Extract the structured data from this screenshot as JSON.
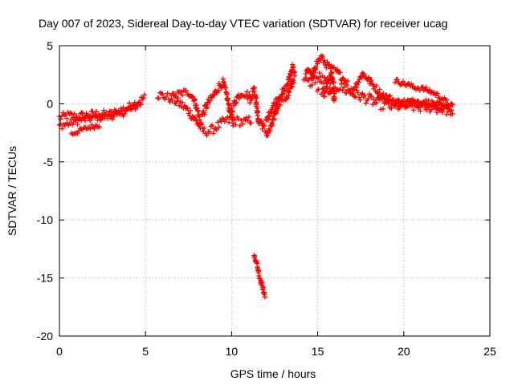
{
  "chart_data": {
    "type": "scatter",
    "title": "Day 007 of 2023, Sidereal Day-to-day VTEC variation (SDTVAR) for receiver ucag",
    "xlabel": "GPS time / hours",
    "ylabel": "SDTVAR / TECUs",
    "xlim": [
      0,
      25
    ],
    "ylim": [
      -20,
      5
    ],
    "xticks": [
      0,
      5,
      10,
      15,
      20,
      25
    ],
    "yticks": [
      -20,
      -15,
      -10,
      -5,
      0,
      5
    ],
    "grid": true,
    "marker": "+",
    "color": "#ff0000",
    "series": [
      {
        "name": "SDTVAR",
        "bands": [
          {
            "points": [
              [
                0.0,
                -1.2
              ],
              [
                0.5,
                -1.0
              ],
              [
                1.0,
                -1.1
              ],
              [
                1.5,
                -1.0
              ],
              [
                2.0,
                -0.9
              ],
              [
                2.5,
                -0.9
              ],
              [
                3.0,
                -0.9
              ],
              [
                3.5,
                -0.6
              ],
              [
                4.0,
                -0.3
              ],
              [
                4.5,
                0.1
              ],
              [
                5.0,
                0.6
              ]
            ],
            "spread": 0.35
          },
          {
            "points": [
              [
                0.0,
                -1.9
              ],
              [
                0.6,
                -1.7
              ],
              [
                1.2,
                -1.4
              ],
              [
                2.0,
                -1.2
              ],
              [
                2.8,
                -1.1
              ],
              [
                3.5,
                -0.9
              ],
              [
                4.2,
                -0.4
              ],
              [
                4.8,
                0.1
              ]
            ],
            "spread": 0.3
          },
          {
            "points": [
              [
                0.7,
                -2.6
              ],
              [
                1.2,
                -2.3
              ],
              [
                1.8,
                -2.0
              ],
              [
                2.4,
                -1.8
              ]
            ],
            "spread": 0.2
          },
          {
            "points": [
              [
                5.7,
                0.8
              ],
              [
                6.2,
                0.6
              ],
              [
                6.7,
                0.3
              ],
              [
                7.2,
                -0.2
              ],
              [
                7.6,
                -0.8
              ],
              [
                8.0,
                -1.6
              ],
              [
                8.4,
                -2.4
              ],
              [
                8.8,
                -2.3
              ],
              [
                9.2,
                -1.9
              ],
              [
                9.6,
                -1.5
              ],
              [
                10.0,
                -1.4
              ],
              [
                10.4,
                -1.5
              ],
              [
                10.8,
                -1.6
              ],
              [
                11.2,
                -1.3
              ]
            ],
            "spread": 0.4
          },
          {
            "points": [
              [
                6.5,
                0.6
              ],
              [
                7.0,
                0.9
              ],
              [
                7.5,
                1.0
              ],
              [
                7.8,
                0.5
              ],
              [
                8.0,
                -0.5
              ],
              [
                8.2,
                -1.5
              ]
            ],
            "spread": 0.3
          },
          {
            "points": [
              [
                8.3,
                -1.0
              ],
              [
                8.6,
                0.0
              ],
              [
                9.0,
                0.8
              ],
              [
                9.3,
                1.6
              ],
              [
                9.5,
                1.8
              ],
              [
                9.7,
                0.8
              ],
              [
                9.9,
                -0.6
              ],
              [
                10.1,
                -1.8
              ]
            ],
            "spread": 0.35
          },
          {
            "points": [
              [
                10.0,
                -0.5
              ],
              [
                10.3,
                0.5
              ],
              [
                10.6,
                1.0
              ],
              [
                10.9,
                0.8
              ],
              [
                11.1,
                0.3
              ],
              [
                11.3,
                1.4
              ],
              [
                11.4,
                0.5
              ],
              [
                11.5,
                -0.8
              ],
              [
                11.6,
                -1.8
              ]
            ],
            "spread": 0.35
          },
          {
            "points": [
              [
                11.7,
                -1.5
              ],
              [
                11.9,
                -2.2
              ],
              [
                12.1,
                -2.6
              ],
              [
                12.3,
                -2.0
              ],
              [
                12.5,
                -1.0
              ],
              [
                12.7,
                0.0
              ],
              [
                12.9,
                0.5
              ],
              [
                13.1,
                0.5
              ],
              [
                13.3,
                0.8
              ],
              [
                13.5,
                1.7
              ],
              [
                13.7,
                2.6
              ]
            ],
            "spread": 0.4
          },
          {
            "points": [
              [
                12.0,
                -1.5
              ],
              [
                12.3,
                -0.5
              ],
              [
                12.6,
                0.3
              ],
              [
                12.9,
                0.9
              ],
              [
                13.2,
                1.4
              ],
              [
                13.4,
                2.5
              ],
              [
                13.6,
                3.5
              ]
            ],
            "spread": 0.3
          },
          {
            "points": [
              [
                14.2,
                2.0
              ],
              [
                14.5,
                1.8
              ],
              [
                14.8,
                2.1
              ],
              [
                15.1,
                2.3
              ],
              [
                15.4,
                1.9
              ],
              [
                15.7,
                1.8
              ],
              [
                16.0,
                1.6
              ],
              [
                16.3,
                1.4
              ],
              [
                16.6,
                1.2
              ],
              [
                16.9,
                1.0
              ],
              [
                17.2,
                0.8
              ],
              [
                17.6,
                0.6
              ],
              [
                18.0,
                0.4
              ],
              [
                18.4,
                0.1
              ],
              [
                18.8,
                -0.1
              ],
              [
                19.2,
                -0.2
              ],
              [
                19.6,
                -0.2
              ],
              [
                20.0,
                -0.2
              ],
              [
                20.4,
                -0.2
              ],
              [
                20.8,
                -0.3
              ],
              [
                21.2,
                -0.3
              ],
              [
                21.6,
                -0.3
              ],
              [
                22.0,
                -0.4
              ],
              [
                22.4,
                -0.5
              ],
              [
                22.8,
                -0.6
              ]
            ],
            "spread": 0.45
          },
          {
            "points": [
              [
                14.3,
                2.5
              ],
              [
                14.5,
                3.0
              ],
              [
                14.7,
                2.2
              ],
              [
                14.9,
                3.4
              ],
              [
                15.2,
                4.0
              ],
              [
                15.5,
                3.4
              ],
              [
                15.8,
                3.0
              ],
              [
                16.1,
                2.8
              ],
              [
                16.4,
                2.3
              ],
              [
                16.8,
                1.7
              ]
            ],
            "spread": 0.3
          },
          {
            "points": [
              [
                16.9,
                1.0
              ],
              [
                17.3,
                1.8
              ],
              [
                17.6,
                2.6
              ],
              [
                17.9,
                2.2
              ],
              [
                18.2,
                1.6
              ],
              [
                18.6,
                1.0
              ],
              [
                19.0,
                0.6
              ],
              [
                19.4,
                0.3
              ],
              [
                19.8,
                0.1
              ],
              [
                20.3,
                0.2
              ],
              [
                20.8,
                0.1
              ],
              [
                21.3,
                0.0
              ],
              [
                21.8,
                -0.2
              ],
              [
                22.3,
                -0.3
              ]
            ],
            "spread": 0.3
          },
          {
            "points": [
              [
                19.5,
                2.0
              ],
              [
                19.9,
                1.8
              ],
              [
                20.3,
                1.6
              ],
              [
                20.7,
                1.4
              ],
              [
                21.1,
                1.3
              ],
              [
                21.5,
                1.1
              ],
              [
                21.9,
                0.8
              ],
              [
                22.3,
                0.4
              ],
              [
                22.6,
                0.0
              ],
              [
                22.9,
                -0.3
              ]
            ],
            "spread": 0.2
          },
          {
            "points": [
              [
                18.5,
                0.8
              ],
              [
                19.0,
                0.3
              ],
              [
                19.5,
                0.0
              ],
              [
                20.0,
                -0.1
              ],
              [
                20.5,
                0.1
              ],
              [
                21.0,
                0.2
              ],
              [
                21.5,
                0.1
              ],
              [
                22.0,
                -0.1
              ],
              [
                22.5,
                -0.4
              ],
              [
                22.9,
                -0.7
              ]
            ],
            "spread": 0.25
          },
          {
            "points": [
              [
                11.3,
                -13.1
              ],
              [
                11.5,
                -14.0
              ],
              [
                11.6,
                -14.9
              ],
              [
                11.8,
                -15.8
              ],
              [
                11.95,
                -16.7
              ]
            ],
            "spread": 0.2
          },
          {
            "points": [
              [
                15.3,
                0.9
              ],
              [
                15.8,
                2.5
              ],
              [
                16.0,
                0.5
              ],
              [
                15.5,
                1.2
              ],
              [
                14.9,
                1.5
              ]
            ],
            "spread": 0.6
          }
        ]
      }
    ]
  }
}
